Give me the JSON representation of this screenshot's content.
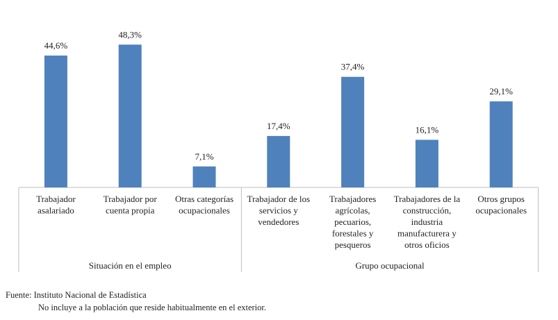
{
  "chart_data": {
    "type": "bar",
    "groups": [
      {
        "label": "Situación en el empleo",
        "categories": [
          {
            "lines": [
              "Trabajador",
              "asalariado"
            ],
            "value": 44.6,
            "label": "44,6%"
          },
          {
            "lines": [
              "Trabajador por",
              "cuenta propia"
            ],
            "value": 48.3,
            "label": "48,3%"
          },
          {
            "lines": [
              "Otras categorías",
              "ocupacionales"
            ],
            "value": 7.1,
            "label": "7,1%"
          }
        ]
      },
      {
        "label": "Grupo ocupacional",
        "categories": [
          {
            "lines": [
              "Trabajador de los",
              "servicios y",
              "vendedores"
            ],
            "value": 17.4,
            "label": "17,4%"
          },
          {
            "lines": [
              "Trabajadores",
              "agrícolas,",
              "pecuarios,",
              "forestales y",
              "pesqueros"
            ],
            "value": 37.4,
            "label": "37,4%"
          },
          {
            "lines": [
              "Trabajadores de la",
              "construcción,",
              "industria",
              "manufacturera y",
              "otros oficios"
            ],
            "value": 16.1,
            "label": "16,1%"
          },
          {
            "lines": [
              "Otros grupos",
              "ocupacionales"
            ],
            "value": 29.1,
            "label": "29,1%"
          }
        ]
      }
    ],
    "bar_color": "#4F81BD",
    "axis_color": "#BFBFBF",
    "ylim": [
      0,
      54
    ],
    "gridlines": false,
    "legend": "none"
  },
  "footer": {
    "source": "Fuente: Instituto Nacional de Estadística",
    "note": "No incluye a la población que reside habitualmente en el exterior."
  }
}
